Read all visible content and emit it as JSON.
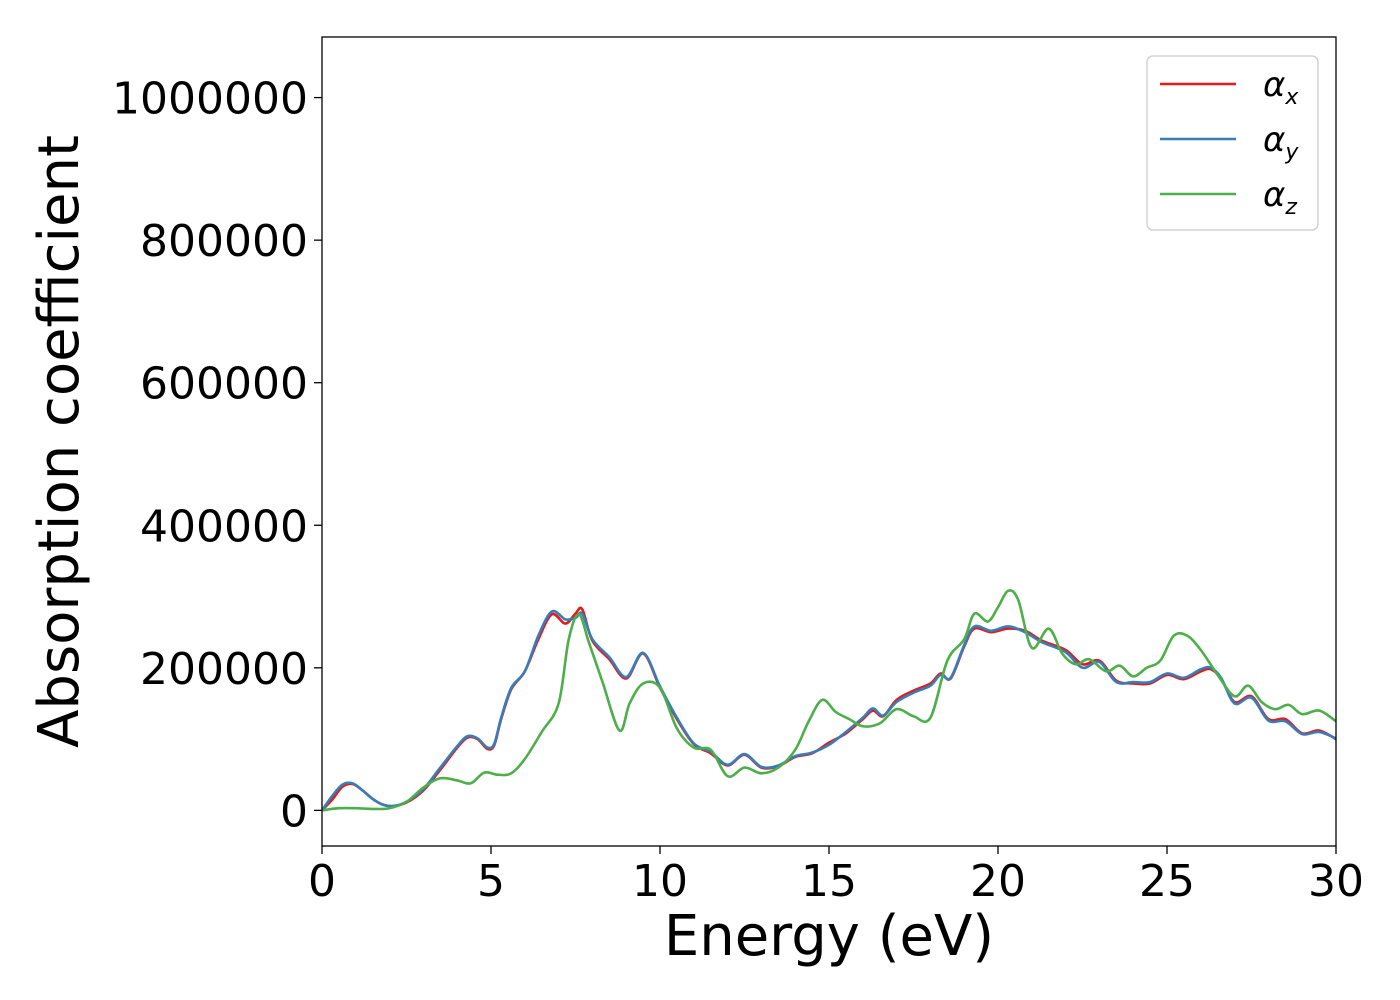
{
  "chart_data": {
    "type": "line",
    "title": "",
    "xlabel": "Energy (eV)",
    "ylabel": "Absorption coefficient",
    "xlim": [
      0,
      30
    ],
    "ylim": [
      -50000,
      1085000
    ],
    "xticks": [
      0,
      5,
      10,
      15,
      20,
      25,
      30
    ],
    "yticks": [
      0,
      200000,
      400000,
      600000,
      800000,
      1000000
    ],
    "xtick_labels": [
      "0",
      "5",
      "10",
      "15",
      "20",
      "25",
      "30"
    ],
    "ytick_labels": [
      "0",
      "200000",
      "400000",
      "600000",
      "800000",
      "1000000"
    ],
    "grid": false,
    "legend_position": "top-right",
    "series": [
      {
        "name": "α_x",
        "legend_base": "α",
        "legend_sub": "x",
        "color": "#e41a1c",
        "points": [
          [
            0,
            0
          ],
          [
            0.3,
            15000
          ],
          [
            0.6,
            33000
          ],
          [
            0.9,
            37000
          ],
          [
            1.2,
            28000
          ],
          [
            1.5,
            16000
          ],
          [
            1.8,
            8000
          ],
          [
            2.1,
            6000
          ],
          [
            2.5,
            11000
          ],
          [
            3.0,
            28000
          ],
          [
            3.5,
            57000
          ],
          [
            4.0,
            88000
          ],
          [
            4.3,
            102000
          ],
          [
            4.6,
            100000
          ],
          [
            4.9,
            86000
          ],
          [
            5.1,
            92000
          ],
          [
            5.3,
            128000
          ],
          [
            5.6,
            170000
          ],
          [
            6.0,
            195000
          ],
          [
            6.4,
            240000
          ],
          [
            6.8,
            275000
          ],
          [
            7.2,
            262000
          ],
          [
            7.5,
            276000
          ],
          [
            7.7,
            282000
          ],
          [
            8.0,
            238000
          ],
          [
            8.5,
            212000
          ],
          [
            9.0,
            185000
          ],
          [
            9.5,
            220000
          ],
          [
            10.0,
            172000
          ],
          [
            10.5,
            128000
          ],
          [
            11.0,
            93000
          ],
          [
            11.5,
            80000
          ],
          [
            12.0,
            63000
          ],
          [
            12.5,
            78000
          ],
          [
            13.0,
            60000
          ],
          [
            13.5,
            62000
          ],
          [
            14.0,
            75000
          ],
          [
            14.5,
            80000
          ],
          [
            15.0,
            95000
          ],
          [
            15.5,
            108000
          ],
          [
            16.0,
            128000
          ],
          [
            16.3,
            140000
          ],
          [
            16.6,
            132000
          ],
          [
            17.0,
            155000
          ],
          [
            17.5,
            168000
          ],
          [
            18.0,
            178000
          ],
          [
            18.3,
            192000
          ],
          [
            18.6,
            185000
          ],
          [
            19.0,
            230000
          ],
          [
            19.3,
            255000
          ],
          [
            19.8,
            250000
          ],
          [
            20.3,
            255000
          ],
          [
            20.8,
            252000
          ],
          [
            21.3,
            238000
          ],
          [
            22.0,
            225000
          ],
          [
            22.5,
            205000
          ],
          [
            23.0,
            210000
          ],
          [
            23.5,
            182000
          ],
          [
            24.0,
            178000
          ],
          [
            24.5,
            178000
          ],
          [
            25.0,
            190000
          ],
          [
            25.5,
            184000
          ],
          [
            26.0,
            195000
          ],
          [
            26.3,
            198000
          ],
          [
            26.6,
            185000
          ],
          [
            27.0,
            152000
          ],
          [
            27.5,
            160000
          ],
          [
            28.0,
            128000
          ],
          [
            28.5,
            128000
          ],
          [
            29.0,
            108000
          ],
          [
            29.5,
            112000
          ],
          [
            30.0,
            100000
          ]
        ]
      },
      {
        "name": "α_y",
        "legend_base": "α",
        "legend_sub": "y",
        "color": "#377eb8",
        "points": [
          [
            0,
            0
          ],
          [
            0.3,
            20000
          ],
          [
            0.6,
            36000
          ],
          [
            0.9,
            38000
          ],
          [
            1.2,
            28000
          ],
          [
            1.5,
            16000
          ],
          [
            1.8,
            8000
          ],
          [
            2.1,
            6000
          ],
          [
            2.5,
            12000
          ],
          [
            3.0,
            30000
          ],
          [
            3.5,
            60000
          ],
          [
            4.0,
            90000
          ],
          [
            4.3,
            104000
          ],
          [
            4.6,
            101000
          ],
          [
            4.9,
            88000
          ],
          [
            5.1,
            94000
          ],
          [
            5.3,
            130000
          ],
          [
            5.6,
            172000
          ],
          [
            6.0,
            195000
          ],
          [
            6.4,
            245000
          ],
          [
            6.8,
            279000
          ],
          [
            7.2,
            268000
          ],
          [
            7.5,
            270000
          ],
          [
            7.7,
            276000
          ],
          [
            8.0,
            240000
          ],
          [
            8.5,
            215000
          ],
          [
            9.0,
            187000
          ],
          [
            9.5,
            221000
          ],
          [
            10.0,
            174000
          ],
          [
            10.5,
            130000
          ],
          [
            11.0,
            94000
          ],
          [
            11.5,
            82000
          ],
          [
            12.0,
            64000
          ],
          [
            12.5,
            79000
          ],
          [
            13.0,
            61000
          ],
          [
            13.5,
            63000
          ],
          [
            14.0,
            76000
          ],
          [
            14.5,
            81000
          ],
          [
            15.0,
            92000
          ],
          [
            15.5,
            110000
          ],
          [
            16.0,
            130000
          ],
          [
            16.3,
            143000
          ],
          [
            16.6,
            133000
          ],
          [
            17.0,
            152000
          ],
          [
            17.5,
            165000
          ],
          [
            18.0,
            175000
          ],
          [
            18.3,
            190000
          ],
          [
            18.6,
            186000
          ],
          [
            19.0,
            232000
          ],
          [
            19.3,
            258000
          ],
          [
            19.8,
            252000
          ],
          [
            20.3,
            258000
          ],
          [
            20.8,
            250000
          ],
          [
            21.3,
            236000
          ],
          [
            22.0,
            222000
          ],
          [
            22.5,
            200000
          ],
          [
            23.0,
            208000
          ],
          [
            23.5,
            180000
          ],
          [
            24.0,
            180000
          ],
          [
            24.5,
            180000
          ],
          [
            25.0,
            192000
          ],
          [
            25.5,
            186000
          ],
          [
            26.0,
            198000
          ],
          [
            26.3,
            200000
          ],
          [
            26.6,
            186000
          ],
          [
            27.0,
            150000
          ],
          [
            27.5,
            158000
          ],
          [
            28.0,
            126000
          ],
          [
            28.5,
            125000
          ],
          [
            29.0,
            107000
          ],
          [
            29.5,
            110000
          ],
          [
            30.0,
            101000
          ]
        ]
      },
      {
        "name": "α_z",
        "legend_base": "α",
        "legend_sub": "z",
        "color": "#4daf4a",
        "points": [
          [
            0,
            0
          ],
          [
            0.5,
            3000
          ],
          [
            1.0,
            3000
          ],
          [
            1.5,
            2000
          ],
          [
            2.0,
            3000
          ],
          [
            2.5,
            12000
          ],
          [
            3.0,
            32000
          ],
          [
            3.5,
            45000
          ],
          [
            4.0,
            42000
          ],
          [
            4.4,
            38000
          ],
          [
            4.8,
            53000
          ],
          [
            5.2,
            50000
          ],
          [
            5.6,
            52000
          ],
          [
            6.0,
            72000
          ],
          [
            6.5,
            110000
          ],
          [
            7.0,
            150000
          ],
          [
            7.3,
            240000
          ],
          [
            7.6,
            275000
          ],
          [
            7.9,
            235000
          ],
          [
            8.3,
            180000
          ],
          [
            8.8,
            112000
          ],
          [
            9.1,
            150000
          ],
          [
            9.5,
            178000
          ],
          [
            10.0,
            172000
          ],
          [
            10.5,
            115000
          ],
          [
            11.0,
            88000
          ],
          [
            11.5,
            85000
          ],
          [
            12.0,
            48000
          ],
          [
            12.5,
            60000
          ],
          [
            13.0,
            52000
          ],
          [
            13.5,
            60000
          ],
          [
            14.0,
            85000
          ],
          [
            14.4,
            125000
          ],
          [
            14.8,
            155000
          ],
          [
            15.2,
            138000
          ],
          [
            15.6,
            128000
          ],
          [
            16.0,
            118000
          ],
          [
            16.5,
            122000
          ],
          [
            17.0,
            142000
          ],
          [
            17.5,
            132000
          ],
          [
            18.0,
            130000
          ],
          [
            18.5,
            210000
          ],
          [
            19.0,
            240000
          ],
          [
            19.3,
            276000
          ],
          [
            19.7,
            265000
          ],
          [
            20.0,
            285000
          ],
          [
            20.3,
            308000
          ],
          [
            20.6,
            295000
          ],
          [
            21.0,
            228000
          ],
          [
            21.5,
            255000
          ],
          [
            21.9,
            220000
          ],
          [
            22.3,
            205000
          ],
          [
            22.7,
            212000
          ],
          [
            23.2,
            195000
          ],
          [
            23.6,
            203000
          ],
          [
            24.0,
            188000
          ],
          [
            24.4,
            200000
          ],
          [
            24.8,
            210000
          ],
          [
            25.2,
            245000
          ],
          [
            25.6,
            245000
          ],
          [
            26.0,
            225000
          ],
          [
            26.5,
            190000
          ],
          [
            27.0,
            160000
          ],
          [
            27.4,
            175000
          ],
          [
            27.8,
            152000
          ],
          [
            28.2,
            142000
          ],
          [
            28.6,
            148000
          ],
          [
            29.0,
            135000
          ],
          [
            29.5,
            140000
          ],
          [
            30.0,
            125000
          ]
        ]
      }
    ]
  }
}
